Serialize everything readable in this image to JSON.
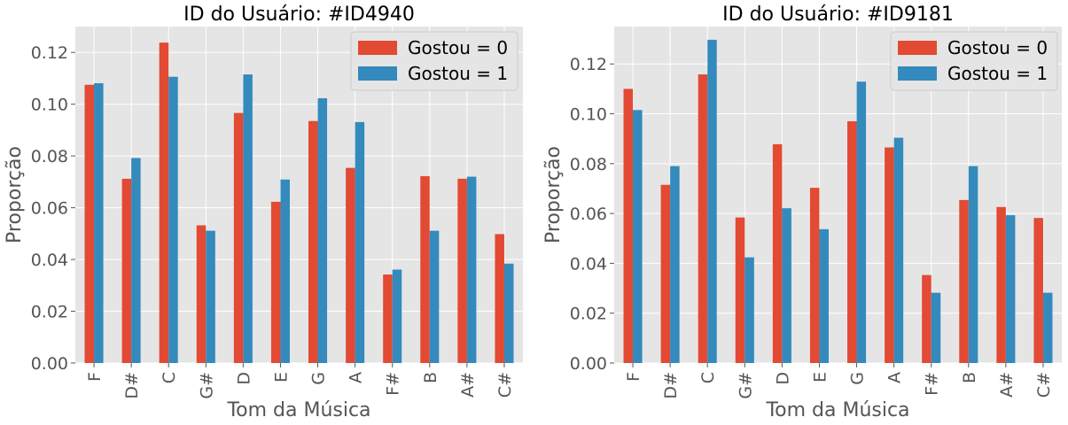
{
  "chart_data": [
    {
      "type": "bar",
      "title": "ID do Usuário: #ID4940",
      "xlabel": "Tom da Música",
      "ylabel": "Proporção",
      "ylim": [
        0,
        0.13
      ],
      "yticks": [
        "0.00",
        "0.02",
        "0.04",
        "0.06",
        "0.08",
        "0.10",
        "0.12"
      ],
      "grid": true,
      "legend": "top-right",
      "categories": [
        "F",
        "D#",
        "C",
        "G#",
        "D",
        "E",
        "G",
        "A",
        "F#",
        "B",
        "A#",
        "C#"
      ],
      "series": [
        {
          "name": "Gostou = 0",
          "color": "#E24A33",
          "values": [
            0.1075,
            0.0712,
            0.1238,
            0.0532,
            0.0966,
            0.0623,
            0.0935,
            0.0754,
            0.0342,
            0.0722,
            0.0712,
            0.0498
          ]
        },
        {
          "name": "Gostou = 1",
          "color": "#348ABD",
          "values": [
            0.1081,
            0.0792,
            0.1106,
            0.0511,
            0.1115,
            0.0709,
            0.1023,
            0.0931,
            0.0361,
            0.0511,
            0.072,
            0.0384
          ]
        }
      ]
    },
    {
      "type": "bar",
      "title": "ID do Usuário: #ID9181",
      "xlabel": "Tom da Música",
      "ylabel": "Proporção",
      "ylim": [
        0,
        0.135
      ],
      "yticks": [
        "0.00",
        "0.02",
        "0.04",
        "0.06",
        "0.08",
        "0.10",
        "0.12"
      ],
      "grid": true,
      "legend": "top-right",
      "categories": [
        "F",
        "D#",
        "C",
        "G#",
        "D",
        "E",
        "G",
        "A",
        "F#",
        "B",
        "A#",
        "C#"
      ],
      "series": [
        {
          "name": "Gostou = 0",
          "color": "#E24A33",
          "values": [
            0.11,
            0.0715,
            0.1158,
            0.0584,
            0.0878,
            0.0703,
            0.097,
            0.0865,
            0.0353,
            0.0654,
            0.0626,
            0.0582
          ]
        },
        {
          "name": "Gostou = 1",
          "color": "#348ABD",
          "values": [
            0.1015,
            0.079,
            0.1297,
            0.0424,
            0.0621,
            0.0537,
            0.1129,
            0.0904,
            0.0282,
            0.079,
            0.0593,
            0.0282
          ]
        }
      ]
    }
  ]
}
